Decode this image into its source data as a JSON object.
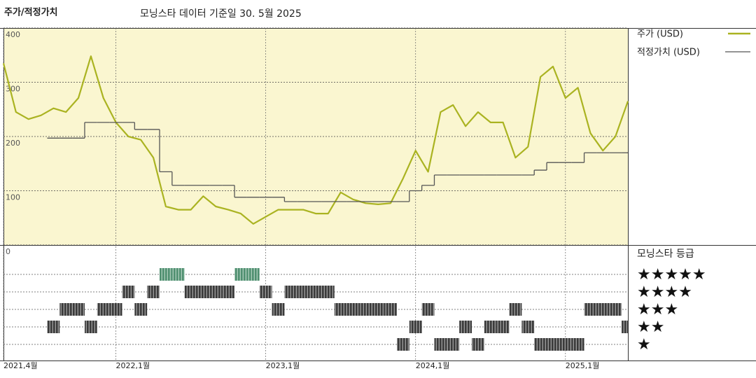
{
  "chart_data": {
    "type": "line",
    "title": "주가/적정가치",
    "subtitle": "모닝스타 데이터 기준일 30. 5월 2025",
    "x": [
      "2021-04",
      "2021-05",
      "2021-06",
      "2021-07",
      "2021-08",
      "2021-09",
      "2021-10",
      "2021-11",
      "2021-12",
      "2022-01",
      "2022-02",
      "2022-03",
      "2022-04",
      "2022-05",
      "2022-06",
      "2022-07",
      "2022-08",
      "2022-09",
      "2022-10",
      "2022-11",
      "2022-12",
      "2023-01",
      "2023-02",
      "2023-03",
      "2023-04",
      "2023-05",
      "2023-06",
      "2023-07",
      "2023-08",
      "2023-09",
      "2023-10",
      "2023-11",
      "2023-12",
      "2024-01",
      "2024-02",
      "2024-03",
      "2024-04",
      "2024-05",
      "2024-06",
      "2024-07",
      "2024-08",
      "2024-09",
      "2024-10",
      "2024-11",
      "2024-12",
      "2025-01",
      "2025-02",
      "2025-03",
      "2025-04",
      "2025-05",
      "2025-06"
    ],
    "xlim": [
      "2021-04",
      "2025-06"
    ],
    "xticks": [
      {
        "value": "2021-04",
        "label": "2021,4월"
      },
      {
        "value": "2022-01",
        "label": "2022,1월"
      },
      {
        "value": "2023-01",
        "label": "2023,1월"
      },
      {
        "value": "2024-01",
        "label": "2024,1월"
      },
      {
        "value": "2025-01",
        "label": "2025,1월"
      }
    ],
    "ylim": [
      0,
      400
    ],
    "yticks": [
      0,
      100,
      200,
      300,
      400
    ],
    "grid": true,
    "series": [
      {
        "name": "주가 (USD)",
        "color": "#aab321",
        "step": false,
        "values": [
          335,
          245,
          232,
          239,
          252,
          245,
          271,
          348,
          271,
          226,
          200,
          194,
          161,
          71,
          65,
          65,
          90,
          71,
          65,
          58,
          39,
          52,
          65,
          65,
          65,
          58,
          58,
          97,
          84,
          77,
          75,
          77,
          123,
          174,
          135,
          245,
          258,
          219,
          245,
          226,
          226,
          161,
          181,
          310,
          329,
          271,
          290,
          206,
          174,
          200,
          265
        ]
      },
      {
        "name": "적정가치 (USD)",
        "color": "#555555",
        "step": true,
        "values": [
          null,
          null,
          null,
          null,
          197,
          197,
          197,
          226,
          226,
          226,
          226,
          213,
          213,
          135,
          110,
          110,
          110,
          110,
          110,
          88,
          88,
          88,
          88,
          80,
          80,
          80,
          80,
          80,
          80,
          80,
          80,
          80,
          80,
          100,
          110,
          129,
          129,
          129,
          129,
          129,
          129,
          129,
          129,
          138,
          152,
          152,
          152,
          170,
          170,
          170,
          170
        ]
      }
    ],
    "rating_panel": {
      "title": "모닝스타 등급",
      "levels": [
        {
          "value": 5,
          "label": "★★★★★"
        },
        {
          "value": 4,
          "label": "★★★★"
        },
        {
          "value": 3,
          "label": "★★★"
        },
        {
          "value": 2,
          "label": "★★"
        },
        {
          "value": 1,
          "label": "★"
        }
      ],
      "top_color": "#4f8f70",
      "color": "#3a3a3a",
      "values": [
        null,
        null,
        null,
        null,
        2,
        3,
        3,
        2,
        3,
        3,
        4,
        3,
        4,
        5,
        5,
        4,
        4,
        4,
        4,
        5,
        5,
        4,
        3,
        4,
        4,
        4,
        4,
        3,
        3,
        3,
        3,
        3,
        1,
        2,
        3,
        1,
        1,
        2,
        1,
        2,
        2,
        3,
        2,
        1,
        1,
        1,
        1,
        3,
        3,
        3,
        2
      ]
    }
  }
}
